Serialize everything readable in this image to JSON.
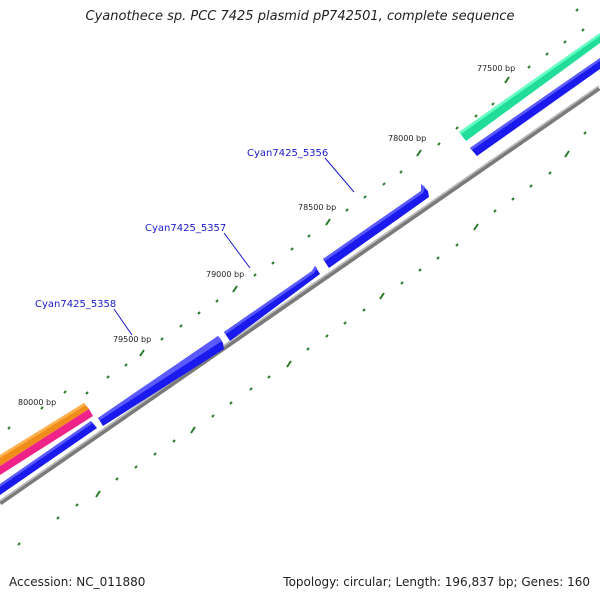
{
  "title": "Cyanothece sp. PCC 7425 plasmid pP742501, complete sequence",
  "footer": {
    "accession": "Accession: NC_011880",
    "stats": "Topology: circular; Length: 196,837 bp; Genes: 160"
  },
  "ticks": [
    {
      "label": "77500 bp"
    },
    {
      "label": "78000 bp"
    },
    {
      "label": "78500 bp"
    },
    {
      "label": "79000 bp"
    },
    {
      "label": "79500 bp"
    },
    {
      "label": "80000 bp"
    }
  ],
  "genes": [
    {
      "name": "Cyan7425_5356"
    },
    {
      "name": "Cyan7425_5357"
    },
    {
      "name": "Cyan7425_5358"
    }
  ],
  "colors": {
    "cds": "#1a1aee",
    "cds_top": "#5a5aff",
    "rna": "#22dd99",
    "orange": "#f08c1a",
    "pink": "#ee2288",
    "backbone": "#888888",
    "tick": "#2a7a2a",
    "gene_label": "#1a1acc"
  }
}
